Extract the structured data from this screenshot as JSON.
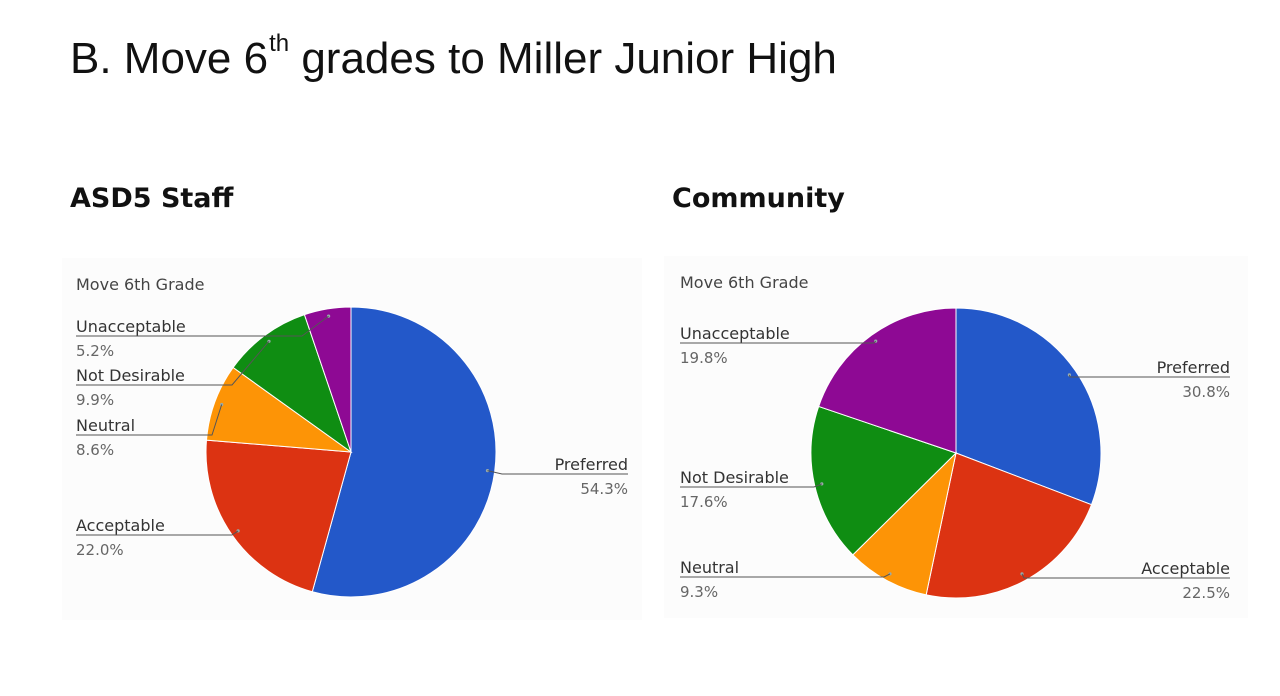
{
  "slide": {
    "title_main": "B. Move 6",
    "title_sup": "th",
    "title_rest": " grades to Miller Junior High"
  },
  "chart_data": [
    {
      "type": "pie",
      "heading": "ASD5 Staff",
      "title": "Move 6th Grade",
      "start_angle_deg": 0,
      "direction": "clockwise",
      "slices": [
        {
          "label": "Preferred",
          "value": 54.3,
          "display": "54.3%",
          "color": "#2358c9"
        },
        {
          "label": "Acceptable",
          "value": 22.0,
          "display": "22.0%",
          "color": "#dc3312"
        },
        {
          "label": "Neutral",
          "value": 8.6,
          "display": "8.6%",
          "color": "#fd9406"
        },
        {
          "label": "Not Desirable",
          "value": 9.9,
          "display": "9.9%",
          "color": "#0f8d12"
        },
        {
          "label": "Unacceptable",
          "value": 5.2,
          "display": "5.2%",
          "color": "#8e0994"
        }
      ]
    },
    {
      "type": "pie",
      "heading": "Community",
      "title": "Move 6th Grade",
      "start_angle_deg": 0,
      "direction": "clockwise",
      "slices": [
        {
          "label": "Preferred",
          "value": 30.8,
          "display": "30.8%",
          "color": "#2358c9"
        },
        {
          "label": "Acceptable",
          "value": 22.5,
          "display": "22.5%",
          "color": "#dc3312"
        },
        {
          "label": "Neutral",
          "value": 9.3,
          "display": "9.3%",
          "color": "#fd9406"
        },
        {
          "label": "Not Desirable",
          "value": 17.6,
          "display": "17.6%",
          "color": "#0f8d12"
        },
        {
          "label": "Unacceptable",
          "value": 19.8,
          "display": "19.8%",
          "color": "#8e0994"
        }
      ]
    }
  ]
}
